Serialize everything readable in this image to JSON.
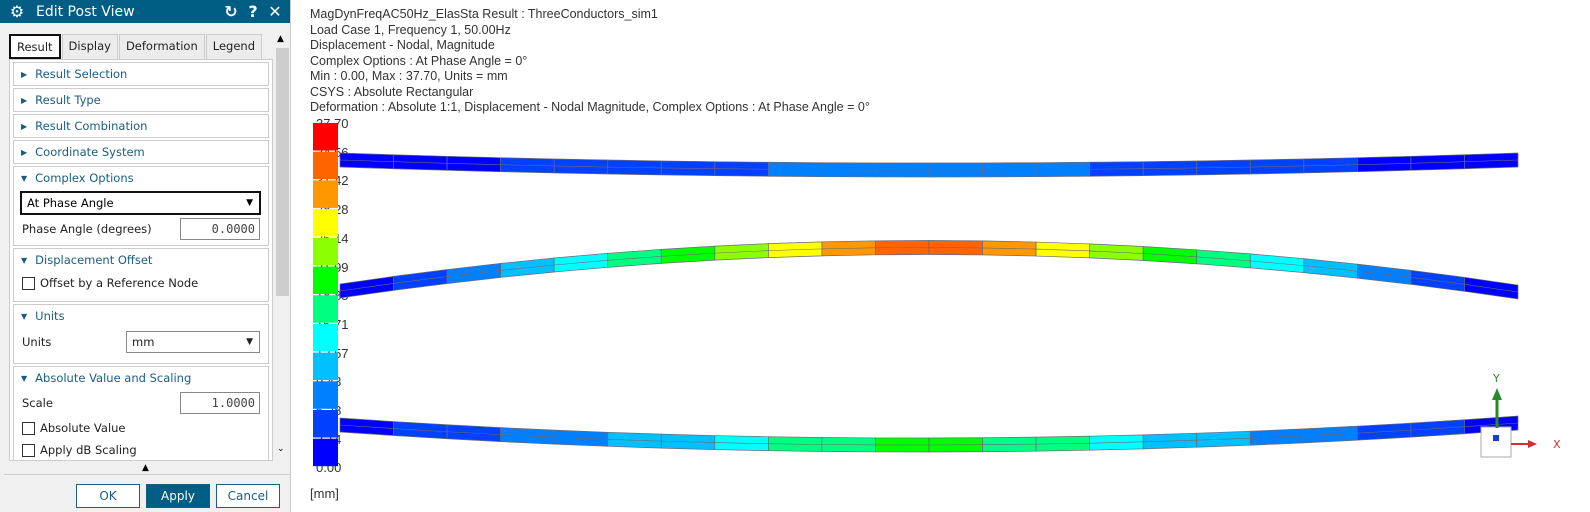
{
  "dialog": {
    "title": "Edit Post View",
    "icons": [
      "gear-icon",
      "reset-icon",
      "help-icon",
      "close-icon"
    ],
    "tabs": [
      "Result",
      "Display",
      "Deformation",
      "Legend"
    ],
    "active_tab": "Result",
    "sections": {
      "result_selection": "Result Selection",
      "result_type": "Result Type",
      "result_combination": "Result Combination",
      "coordinate_system": "Coordinate System",
      "complex_options": {
        "label": "Complex Options",
        "mode": "At Phase Angle",
        "phase_label": "Phase Angle (degrees)",
        "phase_value": "0.0000"
      },
      "displacement_offset": {
        "label": "Displacement Offset",
        "offset_checkbox": "Offset by a Reference Node",
        "offset_checked": false
      },
      "units": {
        "label": "Units",
        "field_label": "Units",
        "value": "mm"
      },
      "scaling": {
        "label": "Absolute Value and Scaling",
        "scale_label": "Scale",
        "scale_value": "1.0000",
        "abs_label": "Absolute Value",
        "abs_checked": false,
        "db_label": "Apply dB Scaling",
        "db_checked": false
      }
    },
    "buttons": {
      "ok": "OK",
      "apply": "Apply",
      "cancel": "Cancel"
    }
  },
  "viewport": {
    "info": [
      "MagDynFreqAC50Hz_ElasSta Result : ThreeConductors_sim1",
      "Load Case 1, Frequency 1, 50.00Hz",
      "Displacement - Nodal, Magnitude",
      "Complex Options : At Phase Angle = 0°",
      "Min : 0.00, Max : 37.70, Units = mm",
      "CSYS : Absolute Rectangular",
      "Deformation : Absolute 1:1, Displacement - Nodal Magnitude, Complex Options : At Phase Angle = 0°"
    ],
    "legend": {
      "labels": [
        "37.70",
        "34.56",
        "31.42",
        "28.28",
        "25.14",
        "21.99",
        "18.85",
        "15.71",
        "12.57",
        "9.43",
        "6.28",
        "3.14",
        "0.00"
      ],
      "colors": [
        "#ff0000",
        "#ff6400",
        "#ff9800",
        "#ffff00",
        "#8cff00",
        "#00ff00",
        "#00ff80",
        "#00ffff",
        "#00c0ff",
        "#0080ff",
        "#0040ff",
        "#0000ff"
      ],
      "unit": "[mm]"
    },
    "triad": {
      "x": "X",
      "y": "Y",
      "x_color": "#d03030",
      "y_color": "#2a8a2a"
    }
  }
}
